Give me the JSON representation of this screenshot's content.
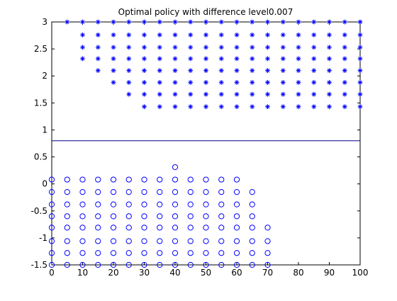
{
  "chart_data": {
    "type": "scatter",
    "title": "Optimal policy with difference level0.007",
    "xlabel": "",
    "ylabel": "",
    "xlim": [
      0,
      100
    ],
    "ylim": [
      -1.5,
      3
    ],
    "x_ticks": [
      "0",
      "10",
      "20",
      "30",
      "40",
      "50",
      "60",
      "70",
      "80",
      "90",
      "100"
    ],
    "y_ticks": [
      "-1.5",
      "-1",
      "-0.5",
      "0",
      "0.5",
      "1",
      "1.5",
      "2",
      "2.5",
      "3"
    ],
    "grid": false,
    "legend": false,
    "colors": {
      "marker": "#0000ff",
      "line": "#00008b",
      "axes": "#000000",
      "background": "#ffffff"
    },
    "threshold_line": {
      "y": 0.8
    },
    "series": [
      {
        "marker": "star",
        "x_grid": [
          5,
          10,
          15,
          20,
          25,
          30,
          35,
          40,
          45,
          50,
          55,
          60,
          65,
          70,
          75,
          80,
          85,
          90,
          95,
          100
        ],
        "y_levels": [
          3.0,
          2.76,
          2.53,
          2.32,
          2.1,
          1.88,
          1.66,
          1.43
        ],
        "level_min_x": [
          5,
          10,
          10,
          10,
          15,
          20,
          25,
          30
        ],
        "x_max": 100
      },
      {
        "marker": "circle",
        "x_grid": [
          0,
          5,
          10,
          15,
          20,
          25,
          30,
          35,
          40,
          45,
          50,
          55,
          60,
          65,
          70
        ],
        "y_levels": [
          0.08,
          -0.15,
          -0.38,
          -0.6,
          -0.81,
          -1.06,
          -1.28,
          -1.5
        ],
        "level_max_x": [
          60,
          65,
          65,
          65,
          70,
          70,
          70,
          70
        ],
        "extra_points": [
          [
            40,
            0.31
          ]
        ]
      }
    ]
  }
}
